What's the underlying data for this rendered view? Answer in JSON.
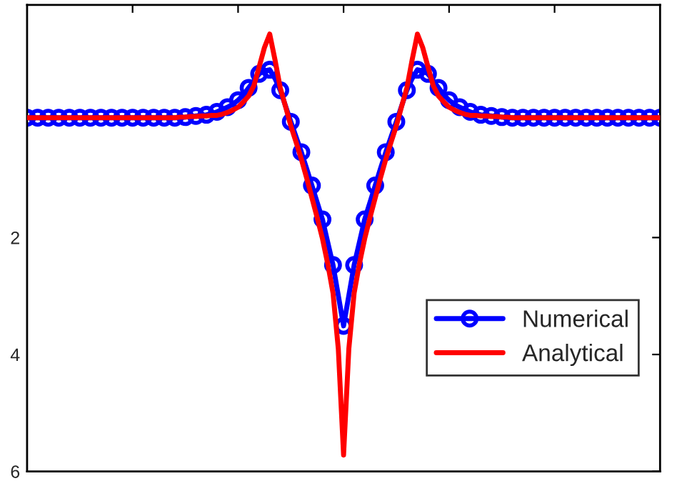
{
  "chart_data": {
    "type": "line",
    "categories": [
      null,
      null,
      null,
      null,
      null,
      null,
      null,
      null,
      null,
      null,
      null,
      null,
      null,
      null,
      null,
      null,
      null,
      null,
      null,
      null,
      null,
      null,
      null,
      null,
      null,
      null,
      null,
      null,
      null,
      null,
      null,
      null,
      null,
      null,
      null,
      null,
      null,
      null,
      null,
      null,
      null,
      null,
      null,
      null,
      null,
      null,
      null,
      null,
      null,
      null,
      null,
      null,
      null,
      null,
      null,
      null,
      null,
      null,
      null,
      null,
      null,
      null,
      null,
      null,
      null,
      null,
      null,
      null,
      null,
      null,
      null,
      null,
      null,
      null,
      null,
      null,
      null,
      null,
      null,
      null,
      null,
      null,
      null,
      null,
      null,
      null,
      null,
      null,
      null,
      null,
      null,
      null,
      null,
      null,
      null,
      null,
      null,
      null,
      null,
      null,
      null,
      null,
      null,
      null,
      null,
      null,
      null,
      null,
      null,
      null,
      null,
      null,
      null,
      null,
      null,
      null,
      null,
      null,
      null,
      null,
      null
    ],
    "ylim": [
      6,
      -1.98
    ],
    "yticks": [
      2,
      4,
      6
    ],
    "tick_labels": "y",
    "grid": false,
    "legend": "bottom right",
    "series": [
      {
        "name": "Numerical",
        "color": "#0000ff",
        "marker": "circle",
        "line_style": "solid",
        "values": [
          -0.05,
          -0.05,
          -0.05,
          -0.05,
          -0.05,
          -0.05,
          -0.05,
          -0.05,
          -0.05,
          -0.05,
          -0.05,
          -0.05,
          -0.05,
          -0.05,
          -0.05,
          -0.05,
          -0.05,
          -0.05,
          -0.05,
          -0.05,
          -0.05,
          -0.05,
          -0.05,
          -0.05,
          -0.05,
          -0.05,
          -0.05,
          -0.05,
          -0.05,
          -0.05,
          -0.06,
          -0.07,
          -0.08,
          -0.09,
          -0.1,
          -0.12,
          -0.15,
          -0.19,
          -0.23,
          -0.28,
          -0.35,
          -0.44,
          -0.56,
          -0.68,
          -0.8,
          -0.85,
          -0.87,
          -0.72,
          -0.52,
          -0.25,
          0.02,
          0.28,
          0.54,
          0.82,
          1.11,
          1.4,
          1.69,
          2.08,
          2.47,
          2.99,
          3.51,
          2.99,
          2.47,
          2.08,
          1.69,
          1.4,
          1.11,
          0.82,
          0.54,
          0.28,
          0.02,
          -0.25,
          -0.52,
          -0.72,
          -0.87,
          -0.85,
          -0.8,
          -0.68,
          -0.56,
          -0.44,
          -0.35,
          -0.28,
          -0.23,
          -0.19,
          -0.15,
          -0.12,
          -0.1,
          -0.09,
          -0.08,
          -0.07,
          -0.06,
          -0.05,
          -0.05,
          -0.05,
          -0.05,
          -0.05,
          -0.05,
          -0.05,
          -0.05,
          -0.05,
          -0.05,
          -0.05,
          -0.05,
          -0.05,
          -0.05,
          -0.05,
          -0.05,
          -0.05,
          -0.05,
          -0.05,
          -0.05,
          -0.05,
          -0.05,
          -0.05,
          -0.05,
          -0.05,
          -0.05,
          -0.05,
          -0.05,
          -0.05,
          -0.05
        ]
      },
      {
        "name": "Analytical",
        "color": "#ff0000",
        "marker": "none",
        "line_style": "solid",
        "values": [
          -0.05,
          -0.05,
          -0.05,
          -0.05,
          -0.05,
          -0.05,
          -0.05,
          -0.05,
          -0.05,
          -0.05,
          -0.05,
          -0.05,
          -0.05,
          -0.05,
          -0.05,
          -0.05,
          -0.05,
          -0.05,
          -0.05,
          -0.05,
          -0.05,
          -0.05,
          -0.05,
          -0.05,
          -0.05,
          -0.05,
          -0.05,
          -0.05,
          -0.05,
          -0.06,
          -0.06,
          -0.07,
          -0.07,
          -0.08,
          -0.08,
          -0.09,
          -0.09,
          -0.11,
          -0.14,
          -0.18,
          -0.23,
          -0.32,
          -0.42,
          -0.6,
          -0.92,
          -1.25,
          -1.48,
          -1.04,
          -0.56,
          -0.24,
          0.09,
          0.37,
          0.66,
          0.98,
          1.32,
          1.66,
          2.02,
          2.45,
          2.95,
          3.9,
          5.72,
          3.9,
          2.95,
          2.45,
          2.02,
          1.66,
          1.32,
          0.98,
          0.66,
          0.37,
          0.09,
          -0.24,
          -0.56,
          -1.04,
          -1.48,
          -1.25,
          -0.92,
          -0.6,
          -0.42,
          -0.32,
          -0.23,
          -0.18,
          -0.14,
          -0.11,
          -0.09,
          -0.09,
          -0.08,
          -0.08,
          -0.07,
          -0.07,
          -0.06,
          -0.06,
          -0.05,
          -0.05,
          -0.05,
          -0.05,
          -0.05,
          -0.05,
          -0.05,
          -0.05,
          -0.05,
          -0.05,
          -0.05,
          -0.05,
          -0.05,
          -0.05,
          -0.05,
          -0.05,
          -0.05,
          -0.05,
          -0.05,
          -0.05,
          -0.05,
          -0.05,
          -0.05,
          -0.05,
          -0.05,
          -0.05,
          -0.05,
          -0.05,
          -0.05
        ]
      }
    ]
  }
}
